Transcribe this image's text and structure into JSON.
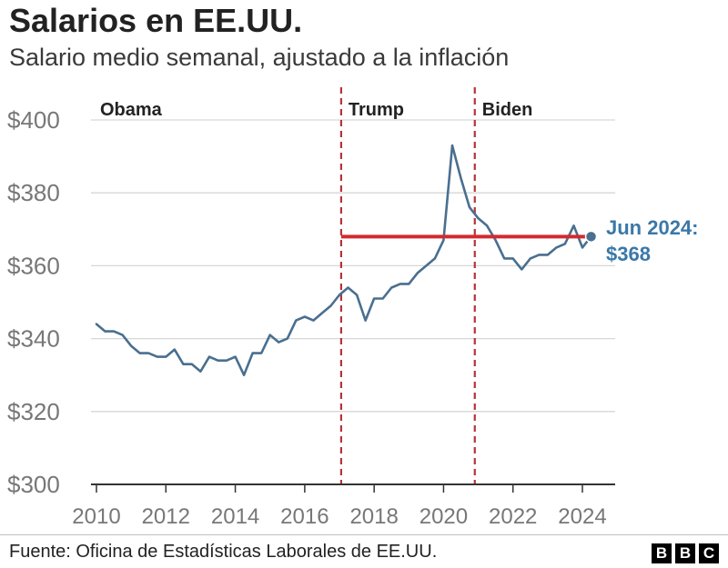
{
  "title": "Salarios en EE.UU.",
  "subtitle": "Salario medio semanal, ajustado a la inflación",
  "source": "Fuente: Oficina de Estadísticas Laborales de EE.UU.",
  "logo": {
    "letters": [
      "B",
      "B",
      "C"
    ]
  },
  "colors": {
    "line": "#4a6f8f",
    "reference_line": "#d42a2f",
    "divider": "#b5333a",
    "gridline": "#d7d7d7",
    "axis": "#333333",
    "tick_label": "#777777",
    "annotation": "#3a78a8"
  },
  "chart_data": {
    "type": "line",
    "title": "Salarios en EE.UU.",
    "subtitle": "Salario medio semanal, ajustado a la inflación",
    "xlim": [
      2010,
      2024.5
    ],
    "ylim": [
      300,
      400
    ],
    "x_ticks": [
      2010,
      2012,
      2014,
      2016,
      2018,
      2020,
      2022,
      2024
    ],
    "y_ticks": [
      300,
      320,
      340,
      360,
      380,
      400
    ],
    "y_tick_labels": [
      "$300",
      "$320",
      "$340",
      "$360",
      "$380",
      "$400"
    ],
    "grid": true,
    "series": [
      {
        "x": [
          2010.0,
          2010.25,
          2010.5,
          2010.75,
          2011.0,
          2011.25,
          2011.5,
          2011.75,
          2012.0,
          2012.25,
          2012.5,
          2012.75,
          2013.0,
          2013.25,
          2013.5,
          2013.75,
          2014.0,
          2014.25,
          2014.5,
          2014.75,
          2015.0,
          2015.25,
          2015.5,
          2015.75,
          2016.0,
          2016.25,
          2016.5,
          2016.75,
          2017.0,
          2017.25,
          2017.5,
          2017.75,
          2018.0,
          2018.25,
          2018.5,
          2018.75,
          2019.0,
          2019.25,
          2019.5,
          2019.75,
          2020.0,
          2020.25,
          2020.5,
          2020.75,
          2021.0,
          2021.25,
          2021.5,
          2021.75,
          2022.0,
          2022.25,
          2022.5,
          2022.75,
          2023.0,
          2023.25,
          2023.5,
          2023.75,
          2024.0,
          2024.25
        ],
        "values": [
          344,
          342,
          342,
          341,
          338,
          336,
          336,
          335,
          335,
          337,
          333,
          333,
          331,
          335,
          334,
          334,
          335,
          330,
          336,
          336,
          341,
          339,
          340,
          345,
          346,
          345,
          347,
          349,
          352,
          354,
          352,
          345,
          351,
          351,
          354,
          355,
          355,
          358,
          360,
          362,
          367,
          393,
          384,
          376,
          373,
          371,
          367,
          362,
          362,
          359,
          362,
          363,
          363,
          365,
          366,
          371,
          365,
          368
        ]
      }
    ],
    "reference_line": {
      "y": 368,
      "x_start": 2017.05,
      "x_end": 2024.25
    },
    "periods": [
      {
        "label": "Obama",
        "x": 2010
      },
      {
        "label": "Trump",
        "x": 2017.05
      },
      {
        "label": "Biden",
        "x": 2020.9
      }
    ],
    "end_point": {
      "x": 2024.25,
      "y": 368,
      "label_line1": "Jun 2024:",
      "label_line2": "$368"
    }
  }
}
